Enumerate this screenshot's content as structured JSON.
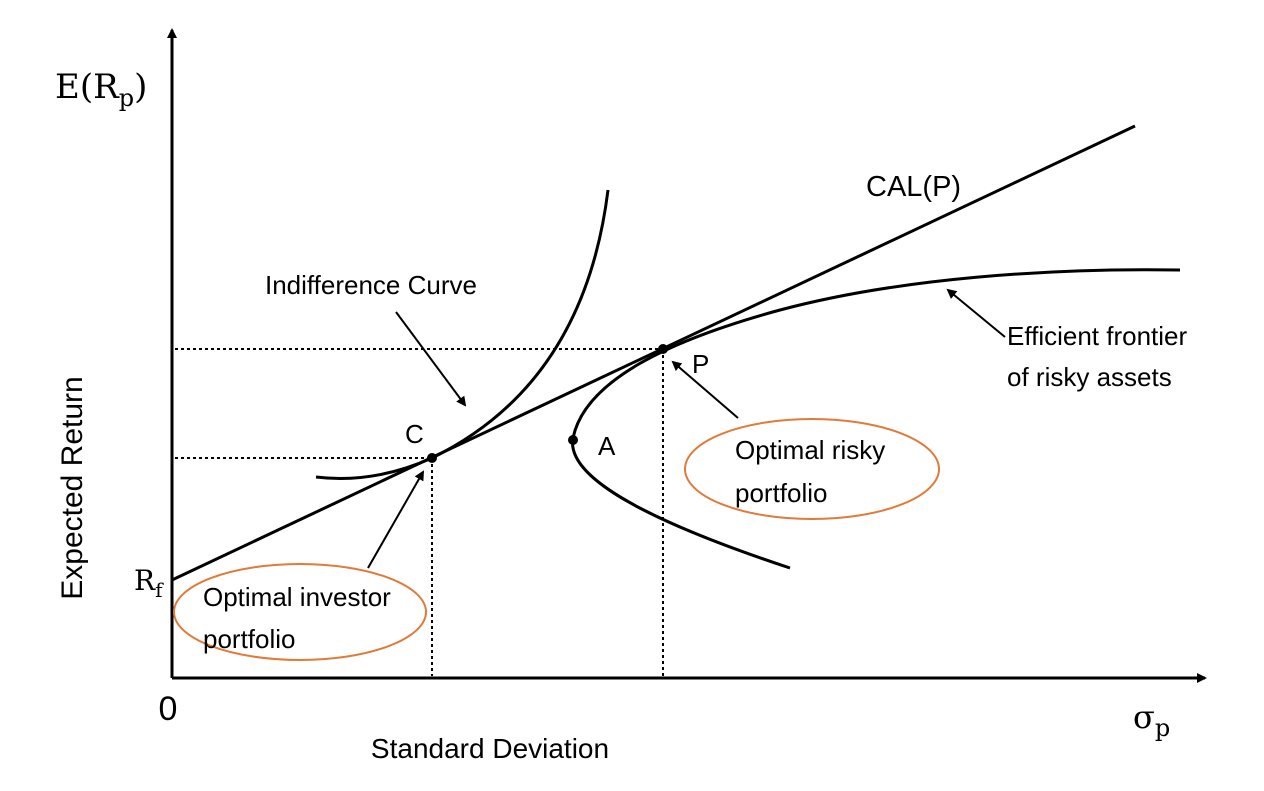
{
  "axes": {
    "y_symbol": "E(R",
    "y_symbol_sub": "p",
    "y_symbol_close": ")",
    "y_title": "Expected Return",
    "x_symbol": "σ",
    "x_symbol_sub": "p",
    "x_title": "Standard Deviation",
    "origin": "0",
    "rf": "R",
    "rf_sub": "f"
  },
  "labels": {
    "cal": "CAL(P)",
    "indifference": "Indifference Curve",
    "efficient_line1": "Efficient frontier",
    "efficient_line2": "of risky assets",
    "point_c": "C",
    "point_a": "A",
    "point_p": "P",
    "optimal_risky_line1": "Optimal risky",
    "optimal_risky_line2": "portfolio",
    "optimal_investor_line1": "Optimal investor",
    "optimal_investor_line2": "portfolio"
  },
  "colors": {
    "callout": "#E07B39",
    "ink": "#000000"
  }
}
